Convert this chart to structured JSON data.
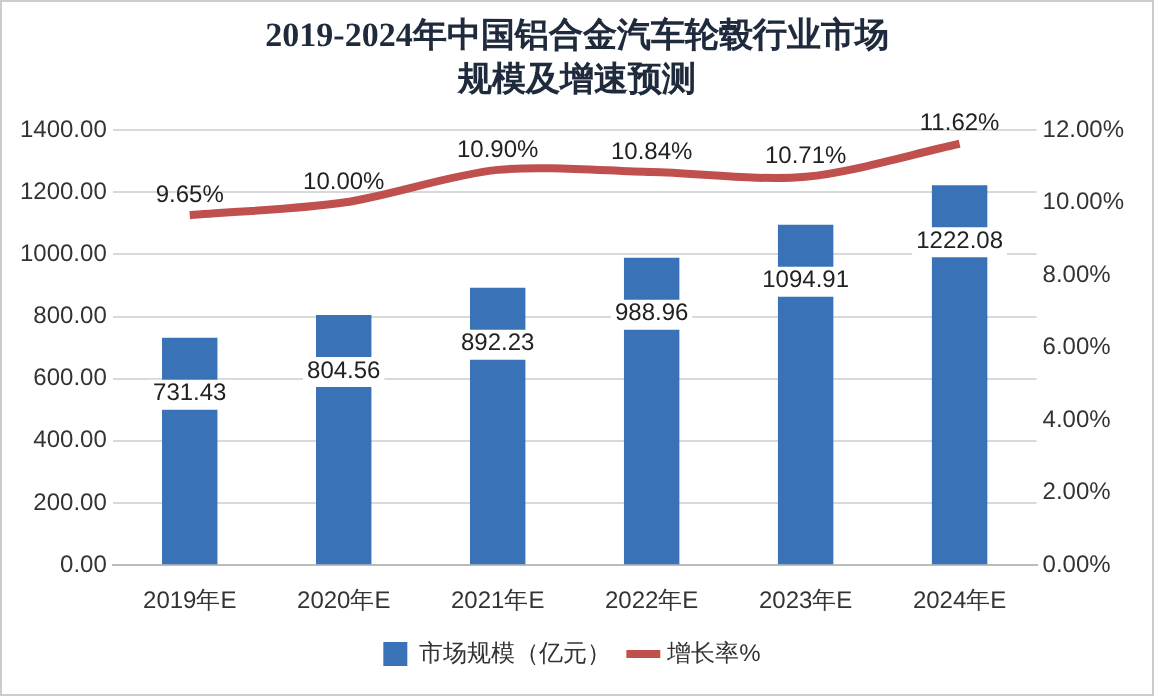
{
  "chart_data": {
    "type": "bar",
    "title": "2019-2024年中国铝合金汽车轮毂行业市场规模及增速预测",
    "categories": [
      "2019年E",
      "2020年E",
      "2021年E",
      "2022年E",
      "2023年E",
      "2024年E"
    ],
    "series": [
      {
        "name": "市场规模（亿元）",
        "color": "#3a72b8",
        "values": [
          731.43,
          804.56,
          892.23,
          988.96,
          1094.91,
          1222.08
        ],
        "value_labels": [
          "731.43",
          "804.56",
          "892.23",
          "988.96",
          "1094.91",
          "1222.08"
        ]
      },
      {
        "name": "增长率%",
        "type": "line",
        "axis": "y2",
        "color": "#c0504d",
        "values": [
          9.65,
          10.0,
          10.9,
          10.84,
          10.71,
          11.62
        ],
        "value_labels": [
          "9.65%",
          "10.00%",
          "10.90%",
          "10.84%",
          "10.71%",
          "11.62%"
        ]
      }
    ],
    "ylim": [
      0,
      1400
    ],
    "yticks": [
      {
        "value": 0,
        "label": "0.00"
      },
      {
        "value": 200,
        "label": "200.00"
      },
      {
        "value": 400,
        "label": "400.00"
      },
      {
        "value": 600,
        "label": "600.00"
      },
      {
        "value": 800,
        "label": "800.00"
      },
      {
        "value": 1000,
        "label": "1000.00"
      },
      {
        "value": 1200,
        "label": "1200.00"
      },
      {
        "value": 1400,
        "label": "1400.00"
      }
    ],
    "y2lim": [
      0,
      12
    ],
    "y2ticks": [
      {
        "value": 0,
        "label": "0.00%"
      },
      {
        "value": 2,
        "label": "2.00%"
      },
      {
        "value": 4,
        "label": "4.00%"
      },
      {
        "value": 6,
        "label": "6.00%"
      },
      {
        "value": 8,
        "label": "8.00%"
      },
      {
        "value": 10,
        "label": "10.00%"
      },
      {
        "value": 12,
        "label": "12.00%"
      }
    ],
    "grid": "y",
    "legend": "bottom"
  }
}
